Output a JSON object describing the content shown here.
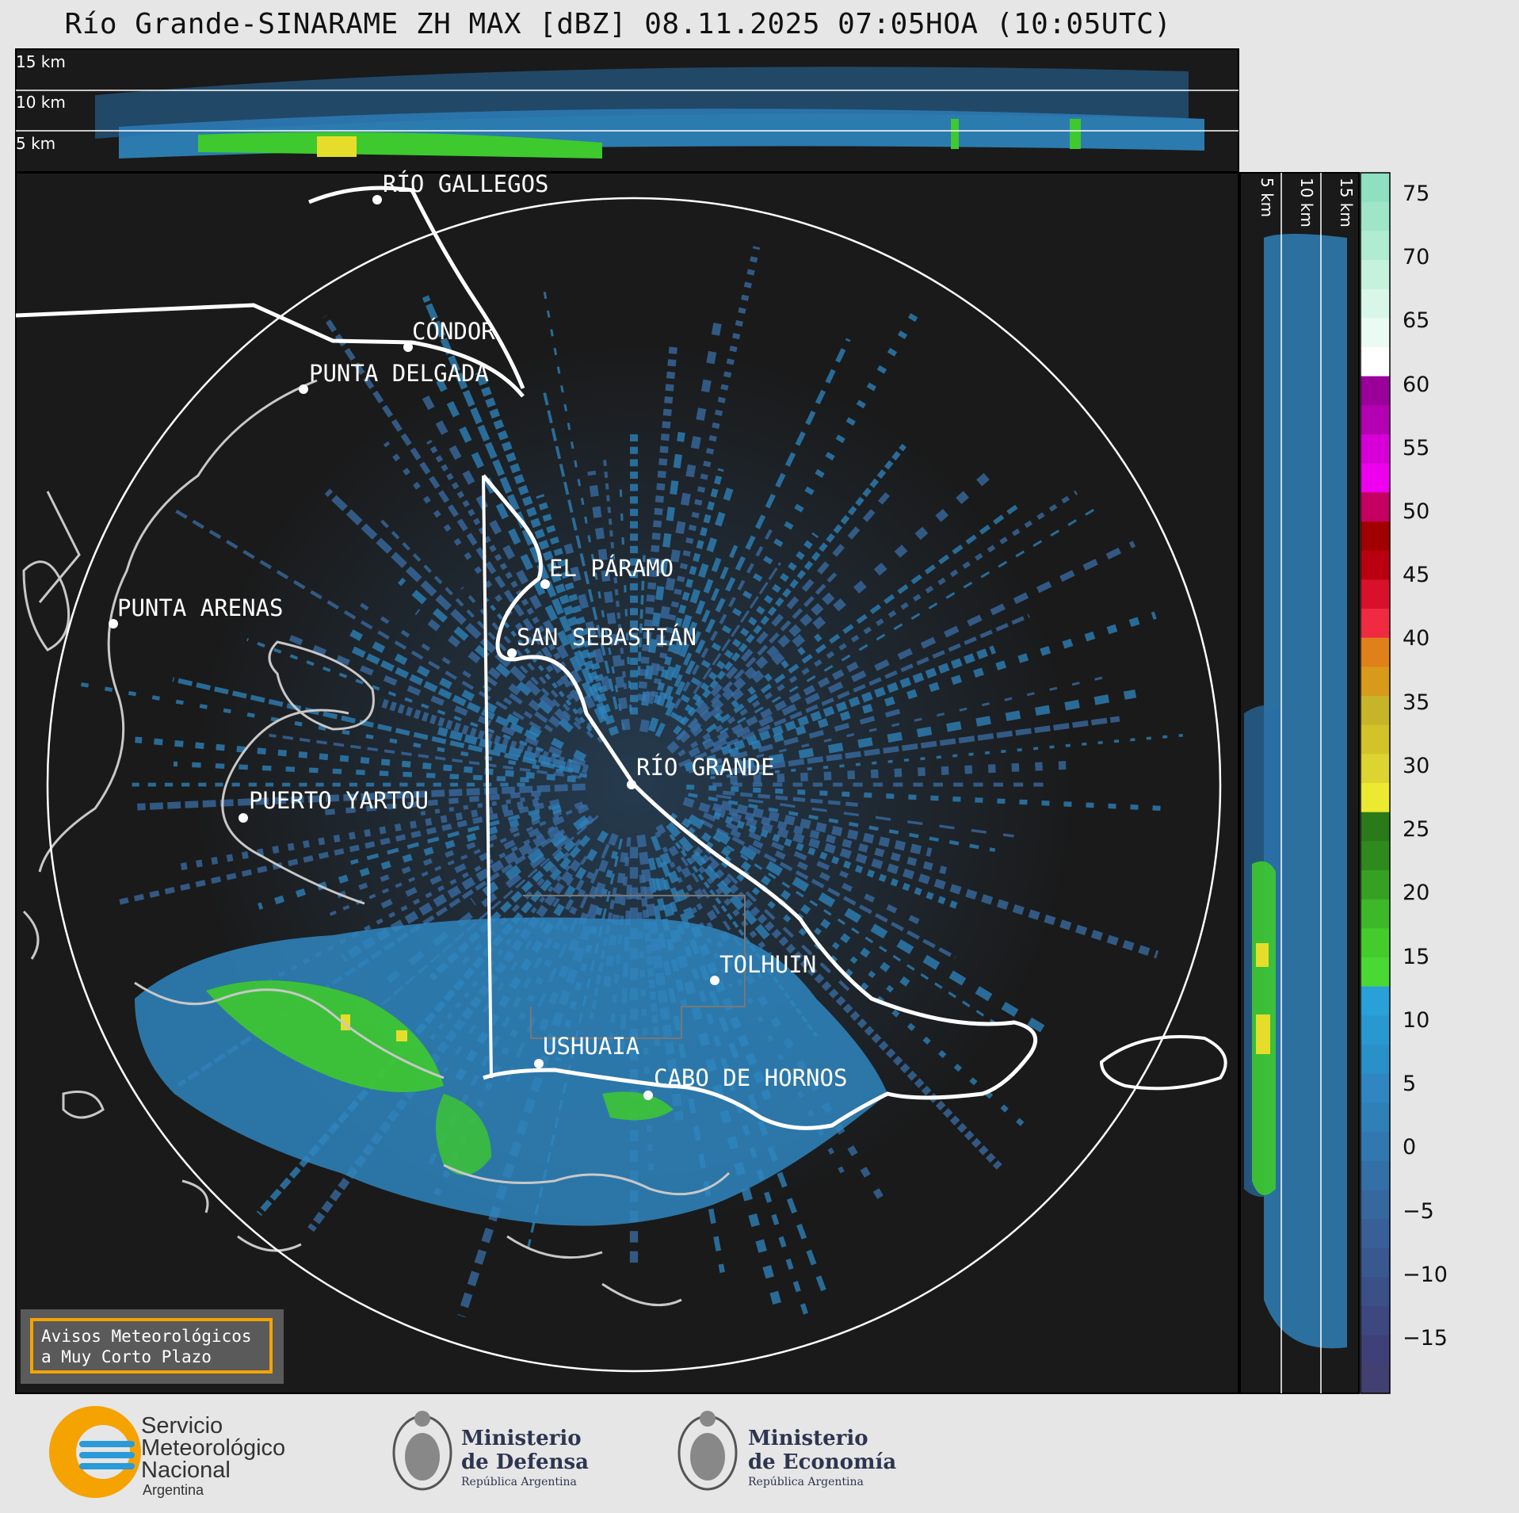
{
  "title": "Río Grande-SINARAME ZH MAX [dBZ] 08.11.2025 07:05HOA (10:05UTC)",
  "top_section_alt_labels": [
    "15 km",
    "10 km",
    "5 km"
  ],
  "right_section_alt_labels": [
    "5 km",
    "10 km",
    "15 km"
  ],
  "cities": [
    {
      "name": "RÍO GALLEGOS"
    },
    {
      "name": "CÓNDOR"
    },
    {
      "name": "PUNTA DELGADA"
    },
    {
      "name": "EL PÁRAMO"
    },
    {
      "name": "PUNTA ARENAS"
    },
    {
      "name": "SAN SEBASTIÁN"
    },
    {
      "name": "RÍO GRANDE"
    },
    {
      "name": "PUERTO YARTOU"
    },
    {
      "name": "TOLHUIN"
    },
    {
      "name": "USHUAIA"
    },
    {
      "name": "CABO DE HORNOS"
    }
  ],
  "colorbar": {
    "unit": "dBZ",
    "ticks": [
      "75",
      "70",
      "65",
      "60",
      "55",
      "50",
      "45",
      "40",
      "35",
      "30",
      "25",
      "20",
      "15",
      "10",
      "5",
      "0",
      "−5",
      "−10",
      "−15"
    ]
  },
  "notice": {
    "line1": "Avisos Meteorológicos",
    "line2": "a Muy Corto Plazo"
  },
  "logos": {
    "smn": {
      "line1": "Servicio",
      "line2": "Meteorológico",
      "line3": "Nacional",
      "line4": "Argentina"
    },
    "defensa": {
      "line1": "Ministerio",
      "line2": "de Defensa",
      "line3": "República Argentina"
    },
    "economia": {
      "line1": "Ministerio",
      "line2": "de Economía",
      "line3": "República Argentina"
    }
  },
  "colors": {
    "background": "#e6e6e6",
    "panel": "#1a1a1a",
    "notice_border": "#f5a300"
  }
}
